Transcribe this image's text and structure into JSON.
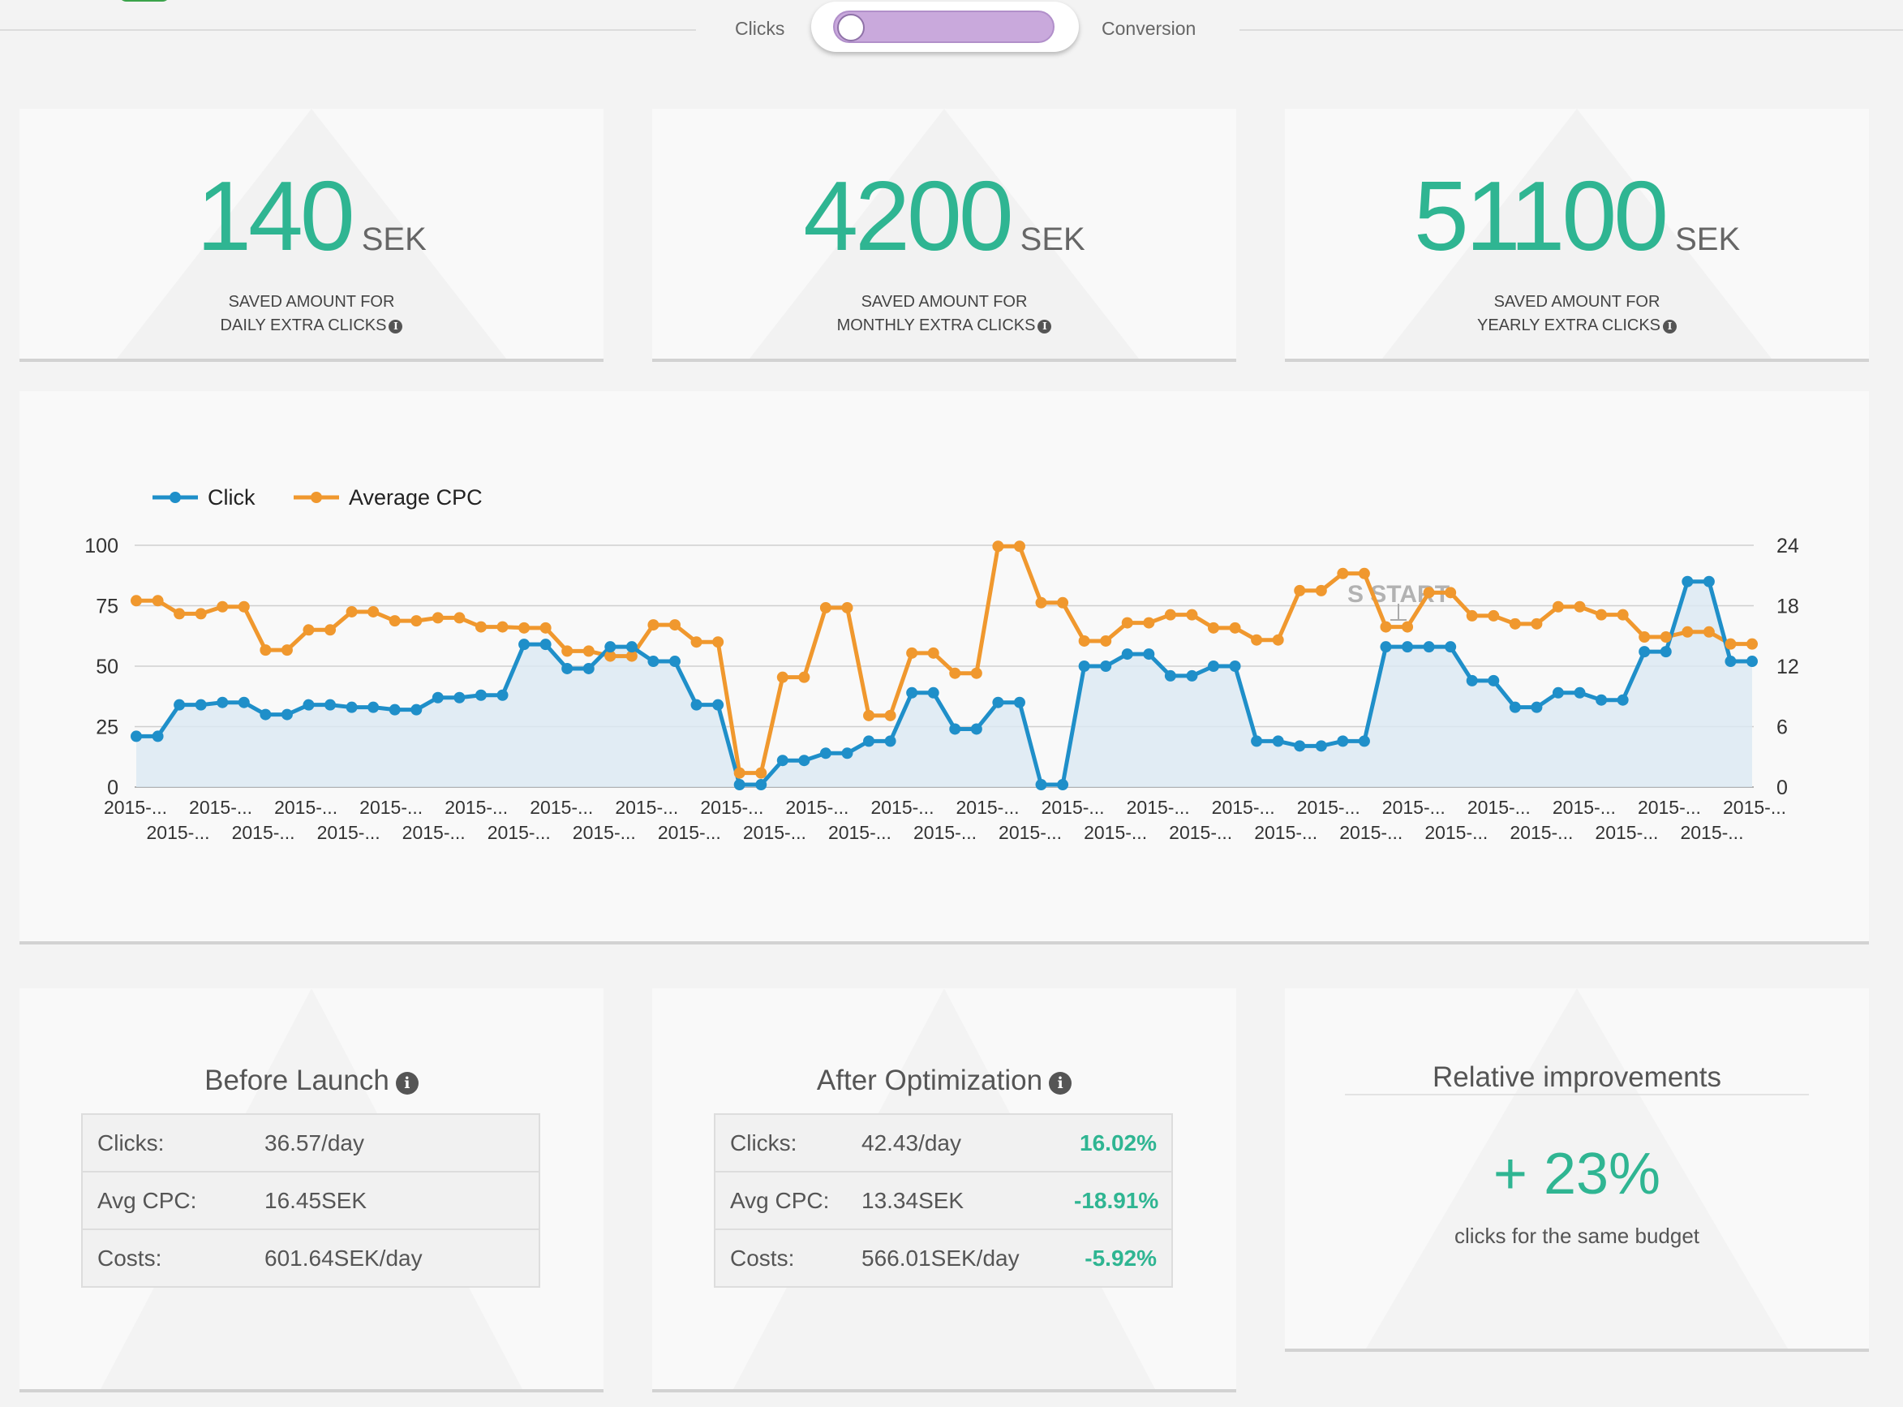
{
  "toggle": {
    "left_label": "Clicks",
    "right_label": "Conversion"
  },
  "kpis": [
    {
      "value": "140",
      "unit": "SEK",
      "caption_line1": "SAVED AMOUNT FOR",
      "caption_line2": "DAILY EXTRA CLICKS"
    },
    {
      "value": "4200",
      "unit": "SEK",
      "caption_line1": "SAVED AMOUNT FOR",
      "caption_line2": "MONTHLY EXTRA CLICKS"
    },
    {
      "value": "51100",
      "unit": "SEK",
      "caption_line1": "SAVED AMOUNT FOR",
      "caption_line2": "YEARLY EXTRA CLICKS"
    }
  ],
  "chart_data": {
    "type": "line",
    "legend": [
      "Click",
      "Average CPC"
    ],
    "legend_position": "top-left",
    "x_tick_label": "2015-...",
    "x_tick_count": 39,
    "annotation": "S START",
    "grid": true,
    "series": [
      {
        "name": "Click",
        "axis": "left",
        "ylim": [
          0,
          100
        ],
        "yticks": [
          0,
          25,
          50,
          75,
          100
        ],
        "color": "#1f8fc9",
        "area": true,
        "values": [
          21,
          21,
          34,
          34,
          35,
          35,
          30,
          30,
          34,
          34,
          33,
          33,
          32,
          32,
          37,
          37,
          38,
          38,
          59,
          59,
          49,
          49,
          58,
          58,
          52,
          52,
          34,
          34,
          1,
          1,
          11,
          11,
          14,
          14,
          19,
          19,
          39,
          39,
          24,
          24,
          35,
          35,
          1,
          1,
          50,
          50,
          55,
          55,
          46,
          46,
          50,
          50,
          19,
          19,
          17,
          17,
          19,
          19,
          58,
          58,
          58,
          58,
          44,
          44,
          33,
          33,
          39,
          39,
          36,
          36,
          56,
          56,
          85,
          85,
          52,
          52
        ]
      },
      {
        "name": "Average CPC",
        "axis": "right",
        "ylim": [
          0,
          24
        ],
        "yticks": [
          0,
          6,
          12,
          18,
          24
        ],
        "color": "#f0982e",
        "area": false,
        "values": [
          18.5,
          18.5,
          17.2,
          17.2,
          17.9,
          17.9,
          13.6,
          13.6,
          15.6,
          15.6,
          17.4,
          17.4,
          16.5,
          16.5,
          16.8,
          16.8,
          15.9,
          15.9,
          15.8,
          15.8,
          13.5,
          13.5,
          13,
          13,
          16.1,
          16.1,
          14.4,
          14.4,
          1.4,
          1.4,
          10.9,
          10.9,
          17.8,
          17.8,
          7.1,
          7.1,
          13.3,
          13.3,
          11.3,
          11.3,
          23.9,
          23.9,
          18.3,
          18.3,
          14.5,
          14.5,
          16.3,
          16.3,
          17.1,
          17.1,
          15.8,
          15.8,
          14.6,
          14.6,
          19.5,
          19.5,
          21.2,
          21.2,
          15.9,
          15.9,
          19.3,
          19.3,
          17,
          17,
          16.2,
          16.2,
          17.9,
          17.9,
          17.1,
          17.1,
          14.9,
          14.9,
          15.4,
          15.4,
          14.2,
          14.2
        ]
      }
    ]
  },
  "before": {
    "title": "Before Launch",
    "rows": [
      {
        "label": "Clicks:",
        "value": "36.57/day"
      },
      {
        "label": "Avg CPC:",
        "value": "16.45SEK"
      },
      {
        "label": "Costs:",
        "value": "601.64SEK/day"
      }
    ]
  },
  "after": {
    "title": "After Optimization",
    "rows": [
      {
        "label": "Clicks:",
        "value": "42.43/day",
        "pct": "16.02%"
      },
      {
        "label": "Avg CPC:",
        "value": "13.34SEK",
        "pct": "-18.91%"
      },
      {
        "label": "Costs:",
        "value": "566.01SEK/day",
        "pct": "-5.92%"
      }
    ]
  },
  "relative": {
    "title": "Relative improvements",
    "value": "+ 23%",
    "caption": "clicks for the same budget"
  },
  "colors": {
    "accent": "#2fb592",
    "click": "#1f8fc9",
    "cpc": "#f0982e",
    "toggle": "#c9a9dc"
  },
  "icons": {
    "info": "info-circle-icon"
  }
}
